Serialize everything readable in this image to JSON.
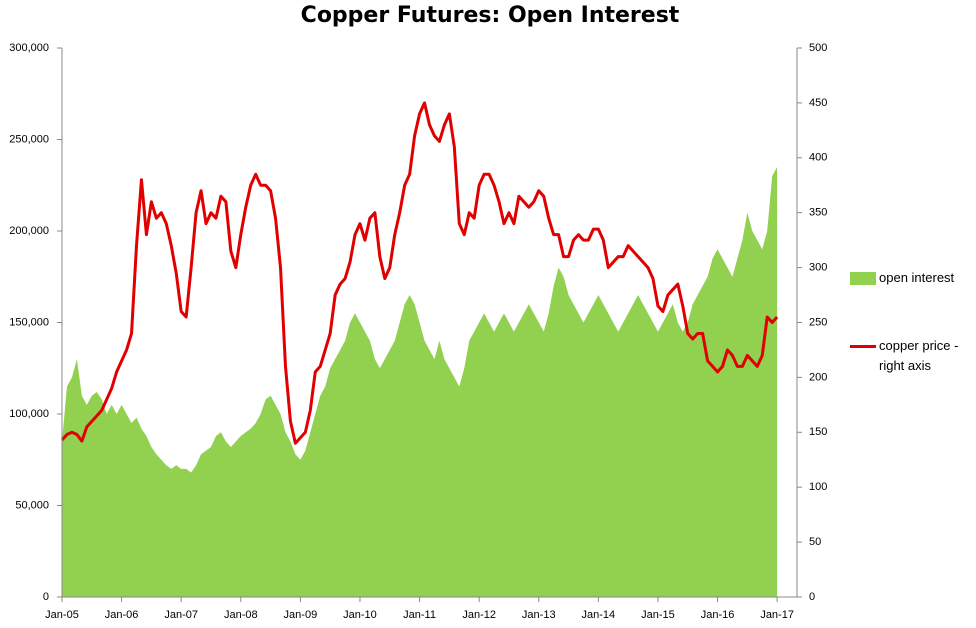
{
  "chart_data": {
    "type": "area-line",
    "title": "Copper Futures: Open Interest",
    "x": [
      "2005-01",
      "2005-02",
      "2005-03",
      "2005-04",
      "2005-05",
      "2005-06",
      "2005-07",
      "2005-08",
      "2005-09",
      "2005-10",
      "2005-11",
      "2005-12",
      "2006-01",
      "2006-02",
      "2006-03",
      "2006-04",
      "2006-05",
      "2006-06",
      "2006-07",
      "2006-08",
      "2006-09",
      "2006-10",
      "2006-11",
      "2006-12",
      "2007-01",
      "2007-02",
      "2007-03",
      "2007-04",
      "2007-05",
      "2007-06",
      "2007-07",
      "2007-08",
      "2007-09",
      "2007-10",
      "2007-11",
      "2007-12",
      "2008-01",
      "2008-02",
      "2008-03",
      "2008-04",
      "2008-05",
      "2008-06",
      "2008-07",
      "2008-08",
      "2008-09",
      "2008-10",
      "2008-11",
      "2008-12",
      "2009-01",
      "2009-02",
      "2009-03",
      "2009-04",
      "2009-05",
      "2009-06",
      "2009-07",
      "2009-08",
      "2009-09",
      "2009-10",
      "2009-11",
      "2009-12",
      "2010-01",
      "2010-02",
      "2010-03",
      "2010-04",
      "2010-05",
      "2010-06",
      "2010-07",
      "2010-08",
      "2010-09",
      "2010-10",
      "2010-11",
      "2010-12",
      "2011-01",
      "2011-02",
      "2011-03",
      "2011-04",
      "2011-05",
      "2011-06",
      "2011-07",
      "2011-08",
      "2011-09",
      "2011-10",
      "2011-11",
      "2011-12",
      "2012-01",
      "2012-02",
      "2012-03",
      "2012-04",
      "2012-05",
      "2012-06",
      "2012-07",
      "2012-08",
      "2012-09",
      "2012-10",
      "2012-11",
      "2012-12",
      "2013-01",
      "2013-02",
      "2013-03",
      "2013-04",
      "2013-05",
      "2013-06",
      "2013-07",
      "2013-08",
      "2013-09",
      "2013-10",
      "2013-11",
      "2013-12",
      "2014-01",
      "2014-02",
      "2014-03",
      "2014-04",
      "2014-05",
      "2014-06",
      "2014-07",
      "2014-08",
      "2014-09",
      "2014-10",
      "2014-11",
      "2014-12",
      "2015-01",
      "2015-02",
      "2015-03",
      "2015-04",
      "2015-05",
      "2015-06",
      "2015-07",
      "2015-08",
      "2015-09",
      "2015-10",
      "2015-11",
      "2015-12",
      "2016-01",
      "2016-02",
      "2016-03",
      "2016-04",
      "2016-05",
      "2016-06",
      "2016-07",
      "2016-08",
      "2016-09",
      "2016-10",
      "2016-11",
      "2016-12",
      "2017-01"
    ],
    "series": [
      {
        "name": "open interest",
        "kind": "area",
        "color": "#92d050",
        "values": [
          85000,
          115000,
          120000,
          130000,
          110000,
          105000,
          110000,
          112000,
          108000,
          100000,
          105000,
          100000,
          105000,
          100000,
          95000,
          98000,
          92000,
          88000,
          82000,
          78000,
          75000,
          72000,
          70000,
          72000,
          70000,
          70000,
          68000,
          72000,
          78000,
          80000,
          82000,
          88000,
          90000,
          85000,
          82000,
          85000,
          88000,
          90000,
          92000,
          95000,
          100000,
          108000,
          110000,
          105000,
          100000,
          90000,
          85000,
          78000,
          75000,
          80000,
          90000,
          100000,
          110000,
          115000,
          125000,
          130000,
          135000,
          140000,
          150000,
          155000,
          150000,
          145000,
          140000,
          130000,
          125000,
          130000,
          135000,
          140000,
          150000,
          160000,
          165000,
          160000,
          150000,
          140000,
          135000,
          130000,
          140000,
          130000,
          125000,
          120000,
          115000,
          125000,
          140000,
          145000,
          150000,
          155000,
          150000,
          145000,
          150000,
          155000,
          150000,
          145000,
          150000,
          155000,
          160000,
          155000,
          150000,
          145000,
          155000,
          170000,
          180000,
          175000,
          165000,
          160000,
          155000,
          150000,
          155000,
          160000,
          165000,
          160000,
          155000,
          150000,
          145000,
          150000,
          155000,
          160000,
          165000,
          160000,
          155000,
          150000,
          145000,
          150000,
          155000,
          160000,
          150000,
          145000,
          150000,
          160000,
          165000,
          170000,
          175000,
          185000,
          190000,
          185000,
          180000,
          175000,
          185000,
          195000,
          210000,
          200000,
          195000,
          190000,
          200000,
          230000,
          235000
        ]
      },
      {
        "name": "copper price - right axis",
        "kind": "line",
        "axis": "y2",
        "color": "#e00000",
        "values": [
          143,
          148,
          150,
          148,
          142,
          155,
          160,
          165,
          170,
          180,
          190,
          205,
          215,
          225,
          240,
          320,
          380,
          330,
          360,
          345,
          350,
          340,
          320,
          295,
          260,
          255,
          300,
          350,
          370,
          340,
          350,
          345,
          365,
          360,
          315,
          300,
          330,
          355,
          375,
          385,
          375,
          375,
          370,
          345,
          300,
          210,
          160,
          140,
          145,
          150,
          170,
          205,
          210,
          225,
          240,
          275,
          285,
          290,
          305,
          330,
          340,
          325,
          345,
          350,
          310,
          290,
          300,
          330,
          350,
          375,
          385,
          420,
          440,
          450,
          430,
          420,
          415,
          430,
          440,
          410,
          340,
          330,
          350,
          345,
          375,
          385,
          385,
          375,
          360,
          340,
          350,
          340,
          365,
          360,
          355,
          360,
          370,
          365,
          345,
          330,
          330,
          310,
          310,
          325,
          330,
          325,
          325,
          335,
          335,
          325,
          300,
          305,
          310,
          310,
          320,
          315,
          310,
          305,
          300,
          290,
          265,
          260,
          275,
          280,
          285,
          265,
          240,
          235,
          240,
          240,
          215,
          210,
          205,
          210,
          225,
          220,
          210,
          210,
          220,
          215,
          210,
          220,
          255,
          250,
          255
        ]
      }
    ],
    "xlim": [
      "2005-01",
      "2017-05"
    ],
    "xticks": [
      {
        "value": "2005-01",
        "label": "Jan-05"
      },
      {
        "value": "2006-01",
        "label": "Jan-06"
      },
      {
        "value": "2007-01",
        "label": "Jan-07"
      },
      {
        "value": "2008-01",
        "label": "Jan-08"
      },
      {
        "value": "2009-01",
        "label": "Jan-09"
      },
      {
        "value": "2010-01",
        "label": "Jan-10"
      },
      {
        "value": "2011-01",
        "label": "Jan-11"
      },
      {
        "value": "2012-01",
        "label": "Jan-12"
      },
      {
        "value": "2013-01",
        "label": "Jan-13"
      },
      {
        "value": "2014-01",
        "label": "Jan-14"
      },
      {
        "value": "2015-01",
        "label": "Jan-15"
      },
      {
        "value": "2016-01",
        "label": "Jan-16"
      },
      {
        "value": "2017-01",
        "label": "Jan-17"
      }
    ],
    "ylim": [
      0,
      300000
    ],
    "yticks": [
      0,
      {
        "value": 50000,
        "label": "50,000"
      },
      {
        "value": 100000,
        "label": "100,000"
      },
      {
        "value": 150000,
        "label": "150,000"
      },
      {
        "value": 200000,
        "label": "200,000"
      },
      {
        "value": 250000,
        "label": "250,000"
      },
      {
        "value": 300000,
        "label": "300,000"
      }
    ],
    "y2lim": [
      0,
      500
    ],
    "y2ticks": [
      0,
      50,
      100,
      150,
      200,
      250,
      300,
      350,
      400,
      450,
      500
    ],
    "legend": "right"
  }
}
